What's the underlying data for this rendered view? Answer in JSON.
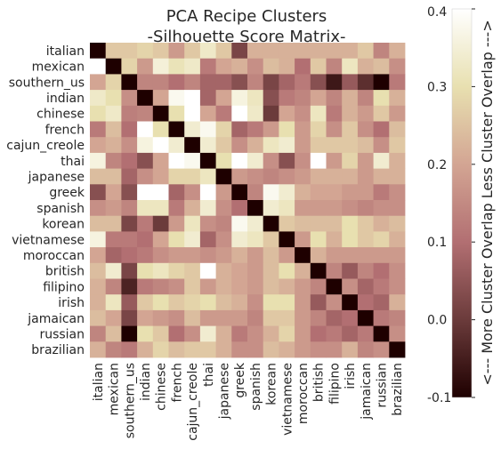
{
  "chart_data": {
    "type": "heatmap",
    "title": "PCA Recipe Clusters",
    "subtitle": "-Silhouette Score Matrix-",
    "labels": [
      "italian",
      "mexican",
      "southern_us",
      "indian",
      "chinese",
      "french",
      "cajun_creole",
      "thai",
      "japanese",
      "greek",
      "spanish",
      "korean",
      "vietnamese",
      "moroccan",
      "british",
      "filipino",
      "irish",
      "jamaican",
      "russian",
      "brazilian"
    ],
    "values": [
      [
        -0.1,
        0.26,
        0.26,
        0.28,
        0.26,
        0.18,
        0.26,
        0.33,
        0.26,
        0.02,
        0.22,
        0.22,
        0.22,
        0.22,
        0.22,
        0.22,
        0.22,
        0.26,
        0.14,
        0.22
      ],
      [
        0.4,
        -0.1,
        0.28,
        0.18,
        0.35,
        0.31,
        0.33,
        0.12,
        0.2,
        0.22,
        0.16,
        0.24,
        0.22,
        0.1,
        0.26,
        0.14,
        0.32,
        0.22,
        0.24,
        0.16
      ],
      [
        0.2,
        0.28,
        -0.1,
        0.14,
        0.14,
        0.1,
        0.14,
        0.08,
        0.08,
        0.04,
        0.14,
        0.02,
        0.08,
        0.12,
        0.04,
        -0.06,
        0.06,
        -0.02,
        -0.1,
        0.12
      ],
      [
        0.33,
        0.3,
        0.16,
        -0.1,
        0.2,
        0.38,
        0.4,
        0.08,
        0.2,
        0.36,
        0.32,
        0.04,
        0.12,
        0.14,
        0.2,
        0.14,
        0.22,
        0.14,
        0.3,
        0.22
      ],
      [
        0.3,
        0.33,
        0.13,
        0.14,
        -0.1,
        0.3,
        0.4,
        0.2,
        0.12,
        0.4,
        0.33,
        0.0,
        0.2,
        0.16,
        0.32,
        0.12,
        0.22,
        0.18,
        0.26,
        0.18
      ],
      [
        0.12,
        0.24,
        0.1,
        0.4,
        0.3,
        -0.1,
        0.34,
        0.38,
        0.28,
        0.08,
        0.12,
        0.18,
        0.3,
        0.18,
        0.28,
        0.16,
        0.26,
        0.16,
        0.1,
        0.24
      ],
      [
        0.2,
        0.22,
        0.16,
        0.36,
        0.4,
        0.34,
        -0.1,
        0.34,
        0.26,
        0.16,
        0.22,
        0.32,
        0.34,
        0.18,
        0.26,
        0.26,
        0.26,
        0.24,
        0.16,
        0.26
      ],
      [
        0.36,
        0.14,
        0.1,
        0.04,
        0.2,
        0.4,
        0.38,
        -0.1,
        0.3,
        0.4,
        0.34,
        0.16,
        0.04,
        0.16,
        0.4,
        0.18,
        0.28,
        0.18,
        0.34,
        0.22
      ],
      [
        0.24,
        0.24,
        0.08,
        0.16,
        0.2,
        0.28,
        0.28,
        0.32,
        -0.1,
        0.18,
        0.16,
        0.14,
        0.16,
        0.18,
        0.22,
        0.22,
        0.22,
        0.18,
        0.22,
        0.22
      ],
      [
        0.04,
        0.2,
        0.04,
        0.4,
        0.4,
        0.08,
        0.16,
        0.4,
        0.18,
        -0.1,
        0.14,
        0.38,
        0.34,
        0.22,
        0.2,
        0.2,
        0.18,
        0.18,
        0.12,
        0.16
      ],
      [
        0.16,
        0.18,
        0.14,
        0.32,
        0.32,
        0.12,
        0.22,
        0.34,
        0.16,
        0.1,
        -0.1,
        0.34,
        0.32,
        0.18,
        0.18,
        0.18,
        0.16,
        0.14,
        0.16,
        0.16
      ],
      [
        0.24,
        0.24,
        0.02,
        0.12,
        0.0,
        0.18,
        0.32,
        0.16,
        0.14,
        0.38,
        0.34,
        -0.1,
        0.26,
        0.24,
        0.24,
        0.24,
        0.3,
        0.26,
        0.22,
        0.24
      ],
      [
        0.36,
        0.12,
        0.12,
        0.1,
        0.2,
        0.3,
        0.34,
        0.08,
        0.16,
        0.34,
        0.32,
        0.26,
        -0.1,
        0.18,
        0.3,
        0.22,
        0.3,
        0.26,
        0.28,
        0.22
      ],
      [
        0.2,
        0.08,
        0.1,
        0.12,
        0.16,
        0.18,
        0.18,
        0.16,
        0.18,
        0.22,
        0.18,
        0.24,
        0.18,
        -0.1,
        0.22,
        0.18,
        0.18,
        0.18,
        0.18,
        0.18
      ],
      [
        0.24,
        0.34,
        0.02,
        0.3,
        0.32,
        0.28,
        0.26,
        0.4,
        0.22,
        0.2,
        0.18,
        0.24,
        0.3,
        0.22,
        -0.1,
        0.14,
        0.06,
        0.14,
        0.1,
        0.16
      ],
      [
        0.22,
        0.14,
        -0.04,
        0.12,
        0.14,
        0.16,
        0.26,
        0.18,
        0.22,
        0.2,
        0.18,
        0.24,
        0.22,
        0.18,
        0.14,
        -0.1,
        0.16,
        0.08,
        0.12,
        0.16
      ],
      [
        0.22,
        0.32,
        0.06,
        0.26,
        0.3,
        0.26,
        0.28,
        0.3,
        0.24,
        0.22,
        0.16,
        0.3,
        0.3,
        0.18,
        0.06,
        0.16,
        -0.1,
        0.1,
        0.08,
        0.22
      ],
      [
        0.24,
        0.2,
        0.02,
        0.2,
        0.18,
        0.16,
        0.24,
        0.18,
        0.18,
        0.18,
        0.14,
        0.26,
        0.26,
        0.18,
        0.14,
        0.08,
        0.1,
        -0.1,
        0.12,
        0.14
      ],
      [
        0.14,
        0.24,
        -0.1,
        0.3,
        0.26,
        0.1,
        0.16,
        0.34,
        0.22,
        0.12,
        0.16,
        0.22,
        0.28,
        0.18,
        0.1,
        0.12,
        0.08,
        0.12,
        -0.1,
        0.16
      ],
      [
        0.22,
        0.14,
        0.12,
        0.22,
        0.28,
        0.24,
        0.26,
        0.26,
        0.22,
        0.16,
        0.16,
        0.24,
        0.22,
        0.18,
        0.16,
        0.16,
        0.22,
        0.14,
        0.16,
        -0.1
      ]
    ],
    "colorbar": {
      "vmin": -0.1,
      "vmax": 0.4,
      "ticks": [
        "-0.1",
        "0.0",
        "0.1",
        "0.2",
        "0.3",
        "0.4"
      ],
      "label": "<--- More Cluster Overlap    Less Cluster Overlap --->"
    },
    "colormap": [
      "#1e0000",
      "#6b3b3b",
      "#b26f72",
      "#d3a593",
      "#e8e0b0",
      "#ffffff"
    ],
    "grid": false,
    "legend": "colorbar-right"
  }
}
